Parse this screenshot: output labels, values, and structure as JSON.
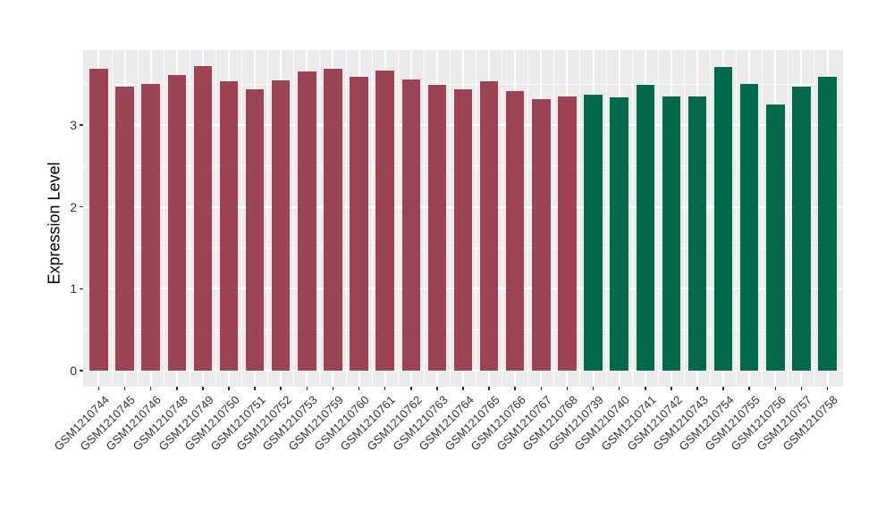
{
  "chart_data": {
    "type": "bar",
    "title": "",
    "xlabel": "",
    "ylabel": "Expression Level",
    "ylim": [
      -0.2,
      3.92
    ],
    "yticks": [
      0,
      1,
      2,
      3
    ],
    "grid": "on",
    "legend_position": "none",
    "panel_background": "#EBEBEB",
    "gridline_color": "#FFFFFF",
    "axis_text_color": "#333333",
    "axis_title_color": "#000000",
    "group_colors": {
      "maroon": "#9C4453",
      "green": "#03694B"
    },
    "bars": [
      {
        "label": "GSM1210744",
        "value": 3.69,
        "group": "maroon"
      },
      {
        "label": "GSM1210745",
        "value": 3.47,
        "group": "maroon"
      },
      {
        "label": "GSM1210746",
        "value": 3.5,
        "group": "maroon"
      },
      {
        "label": "GSM1210748",
        "value": 3.61,
        "group": "maroon"
      },
      {
        "label": "GSM1210749",
        "value": 3.72,
        "group": "maroon"
      },
      {
        "label": "GSM1210750",
        "value": 3.53,
        "group": "maroon"
      },
      {
        "label": "GSM1210751",
        "value": 3.44,
        "group": "maroon"
      },
      {
        "label": "GSM1210752",
        "value": 3.54,
        "group": "maroon"
      },
      {
        "label": "GSM1210753",
        "value": 3.65,
        "group": "maroon"
      },
      {
        "label": "GSM1210759",
        "value": 3.69,
        "group": "maroon"
      },
      {
        "label": "GSM1210760",
        "value": 3.59,
        "group": "maroon"
      },
      {
        "label": "GSM1210761",
        "value": 3.66,
        "group": "maroon"
      },
      {
        "label": "GSM1210762",
        "value": 3.55,
        "group": "maroon"
      },
      {
        "label": "GSM1210763",
        "value": 3.49,
        "group": "maroon"
      },
      {
        "label": "GSM1210764",
        "value": 3.44,
        "group": "maroon"
      },
      {
        "label": "GSM1210765",
        "value": 3.53,
        "group": "maroon"
      },
      {
        "label": "GSM1210766",
        "value": 3.41,
        "group": "maroon"
      },
      {
        "label": "GSM1210767",
        "value": 3.32,
        "group": "maroon"
      },
      {
        "label": "GSM1210768",
        "value": 3.35,
        "group": "maroon"
      },
      {
        "label": "GSM1210739",
        "value": 3.37,
        "group": "green"
      },
      {
        "label": "GSM1210740",
        "value": 3.34,
        "group": "green"
      },
      {
        "label": "GSM1210741",
        "value": 3.49,
        "group": "green"
      },
      {
        "label": "GSM1210742",
        "value": 3.35,
        "group": "green"
      },
      {
        "label": "GSM1210743",
        "value": 3.35,
        "group": "green"
      },
      {
        "label": "GSM1210754",
        "value": 3.71,
        "group": "green"
      },
      {
        "label": "GSM1210755",
        "value": 3.5,
        "group": "green"
      },
      {
        "label": "GSM1210756",
        "value": 3.25,
        "group": "green"
      },
      {
        "label": "GSM1210757",
        "value": 3.47,
        "group": "green"
      },
      {
        "label": "GSM1210758",
        "value": 3.59,
        "group": "green"
      }
    ]
  }
}
